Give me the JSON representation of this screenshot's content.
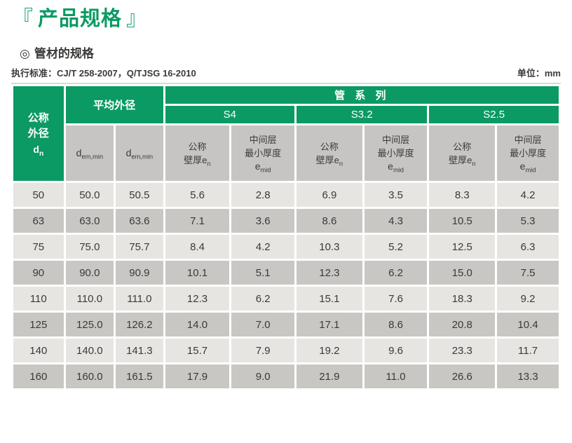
{
  "page": {
    "bracket_open": "『",
    "title": "产品规格",
    "bracket_close": "』",
    "subtitle_bullet": "◎",
    "subtitle": "管材的规格",
    "standard": "执行标准：CJ/T 258-2007，Q/TJSG 16-2010",
    "unit": "单位：mm"
  },
  "colors": {
    "green": "#0b9a63",
    "header_gray": "#c6c5c3",
    "row_light": "#e6e5e2",
    "row_dark": "#c8c7c4",
    "text_dark": "#3a3a38",
    "border_white": "#ffffff",
    "top_rule": "#d9d9d7"
  },
  "table": {
    "header": {
      "dn": {
        "line1": "公称",
        "line2": "外径",
        "base": "d",
        "sub": "n"
      },
      "avg_od": "平均外径",
      "pipe_series": "管 系 列",
      "series": [
        "S4",
        "S3.2",
        "S2.5"
      ],
      "dem1": {
        "base": "d",
        "sub": "em,min"
      },
      "dem2": {
        "base": "d",
        "sub": "em,min"
      },
      "en": {
        "line1": "公称",
        "line2": "壁厚e",
        "sub": "n"
      },
      "emid": {
        "line1": "中间层",
        "line2": "最小厚度",
        "base": "e",
        "sub": "mid"
      }
    },
    "rows": [
      {
        "dn": "50",
        "values": [
          "50.0",
          "50.5",
          "5.6",
          "2.8",
          "6.9",
          "3.5",
          "8.3",
          "4.2"
        ]
      },
      {
        "dn": "63",
        "values": [
          "63.0",
          "63.6",
          "7.1",
          "3.6",
          "8.6",
          "4.3",
          "10.5",
          "5.3"
        ]
      },
      {
        "dn": "75",
        "values": [
          "75.0",
          "75.7",
          "8.4",
          "4.2",
          "10.3",
          "5.2",
          "12.5",
          "6.3"
        ]
      },
      {
        "dn": "90",
        "values": [
          "90.0",
          "90.9",
          "10.1",
          "5.1",
          "12.3",
          "6.2",
          "15.0",
          "7.5"
        ]
      },
      {
        "dn": "110",
        "values": [
          "110.0",
          "111.0",
          "12.3",
          "6.2",
          "15.1",
          "7.6",
          "18.3",
          "9.2"
        ]
      },
      {
        "dn": "125",
        "values": [
          "125.0",
          "126.2",
          "14.0",
          "7.0",
          "17.1",
          "8.6",
          "20.8",
          "10.4"
        ]
      },
      {
        "dn": "140",
        "values": [
          "140.0",
          "141.3",
          "15.7",
          "7.9",
          "19.2",
          "9.6",
          "23.3",
          "11.7"
        ]
      },
      {
        "dn": "160",
        "values": [
          "160.0",
          "161.5",
          "17.9",
          "9.0",
          "21.9",
          "11.0",
          "26.6",
          "13.3"
        ]
      }
    ]
  }
}
